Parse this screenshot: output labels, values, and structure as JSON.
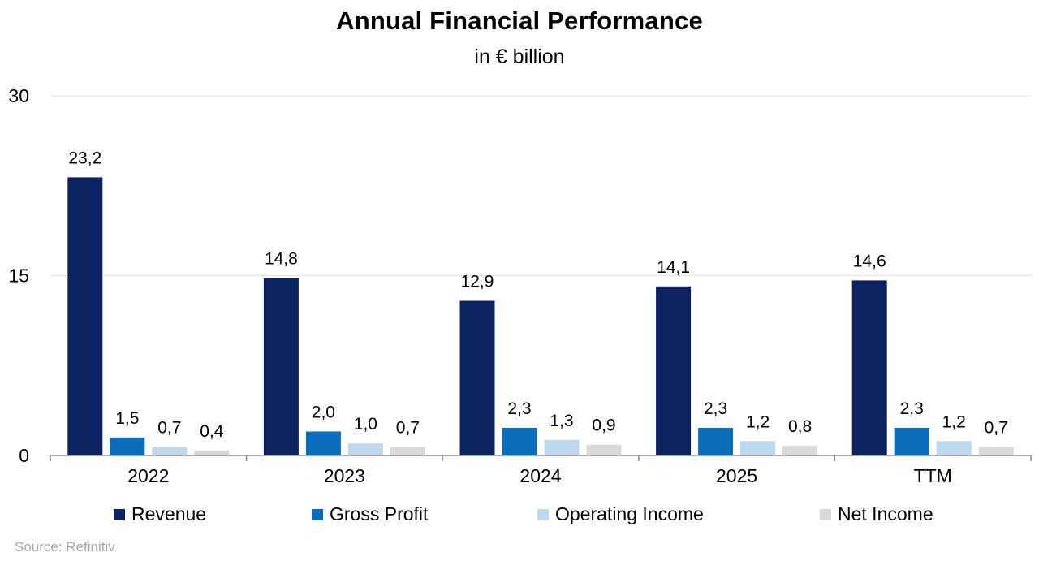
{
  "chart_data": {
    "type": "bar",
    "title": "Annual Financial Performance",
    "subtitle": "in € billion",
    "categories": [
      "2022",
      "2023",
      "2024",
      "2025",
      "TTM"
    ],
    "series": [
      {
        "name": "Revenue",
        "color": "#0d2261",
        "values": [
          23.2,
          14.8,
          12.9,
          14.1,
          14.6
        ],
        "labels": [
          "23,2",
          "14,8",
          "12,9",
          "14,1",
          "14,6"
        ]
      },
      {
        "name": "Gross Profit",
        "color": "#0a6ebd",
        "values": [
          1.5,
          2.0,
          2.3,
          2.3,
          2.3
        ],
        "labels": [
          "1,5",
          "2,0",
          "2,3",
          "2,3",
          "2,3"
        ]
      },
      {
        "name": "Operating Income",
        "color": "#bdd7ee",
        "values": [
          0.7,
          1.0,
          1.3,
          1.2,
          1.2
        ],
        "labels": [
          "0,7",
          "1,0",
          "1,3",
          "1,2",
          "1,2"
        ]
      },
      {
        "name": "Net Income",
        "color": "#d9d9d9",
        "values": [
          0.4,
          0.7,
          0.9,
          0.8,
          0.7
        ],
        "labels": [
          "0,4",
          "0,7",
          "0,9",
          "0,8",
          "0,7"
        ]
      }
    ],
    "y_ticks": [
      "0",
      "15",
      "30"
    ],
    "ylim": [
      0,
      30
    ],
    "grid": true,
    "legend": "bottom",
    "source": "Source: Refinitiv"
  }
}
